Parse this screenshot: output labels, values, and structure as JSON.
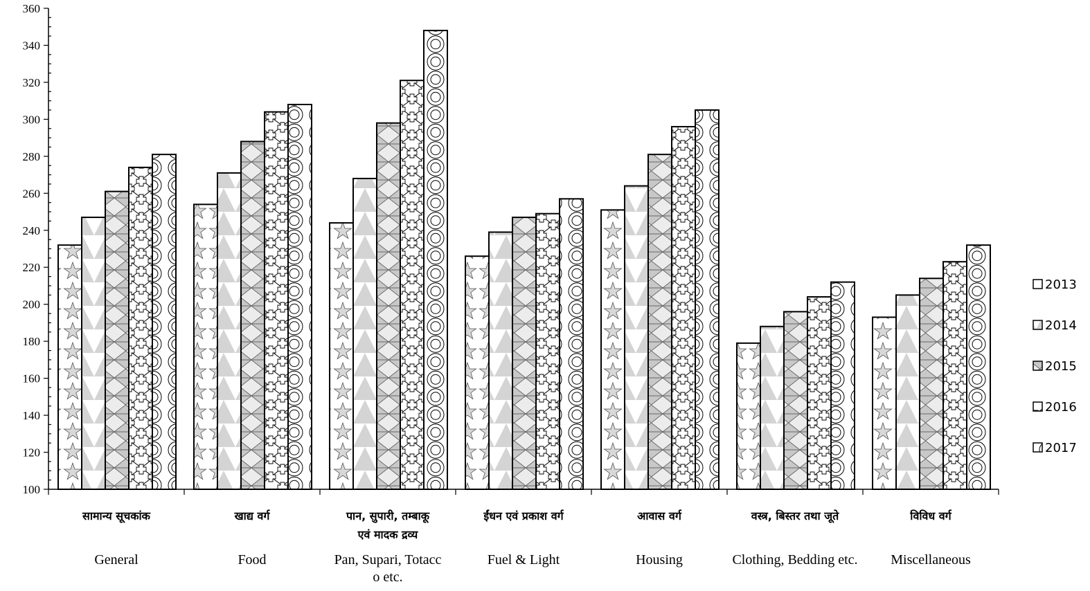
{
  "chart_data": {
    "type": "bar",
    "categories": [
      {
        "hindi": [
          "सामान्य सूचकांक"
        ],
        "english": [
          "General"
        ]
      },
      {
        "hindi": [
          "खाद्य वर्ग"
        ],
        "english": [
          "Food"
        ]
      },
      {
        "hindi": [
          "पान, सुपारी, तम्बाकू",
          "एवं मादक द्रव्य"
        ],
        "english": [
          "Pan, Supari, Totacc",
          "o etc."
        ]
      },
      {
        "hindi": [
          "ईंधन एवं प्रकाश वर्ग"
        ],
        "english": [
          "Fuel & Light"
        ]
      },
      {
        "hindi": [
          "आवास वर्ग"
        ],
        "english": [
          "Housing"
        ]
      },
      {
        "hindi": [
          "वस्त्र, बिस्तर तथा जूते"
        ],
        "english": [
          "Clothing, Bedding  etc."
        ]
      },
      {
        "hindi": [
          "विविध वर्ग"
        ],
        "english": [
          "Miscellaneous"
        ]
      }
    ],
    "series": [
      {
        "name": "2013",
        "pattern": "star",
        "values": [
          232,
          254,
          244,
          226,
          251,
          179,
          193
        ]
      },
      {
        "name": "2014",
        "pattern": "triangle",
        "values": [
          247,
          271,
          268,
          239,
          264,
          188,
          205
        ]
      },
      {
        "name": "2015",
        "pattern": "hourglass",
        "values": [
          261,
          288,
          298,
          247,
          281,
          196,
          214
        ]
      },
      {
        "name": "2016",
        "pattern": "cross",
        "values": [
          274,
          304,
          321,
          249,
          296,
          204,
          223
        ]
      },
      {
        "name": "2017",
        "pattern": "circle",
        "values": [
          281,
          308,
          348,
          257,
          305,
          212,
          232
        ]
      }
    ],
    "ylim": [
      100,
      360
    ],
    "ytick_step": 20,
    "yticks": [
      "100",
      "120",
      "140",
      "160",
      "180",
      "200",
      "220",
      "240",
      "260",
      "280",
      "300",
      "320",
      "340",
      "360"
    ],
    "legend_position": "right",
    "grid": false
  }
}
